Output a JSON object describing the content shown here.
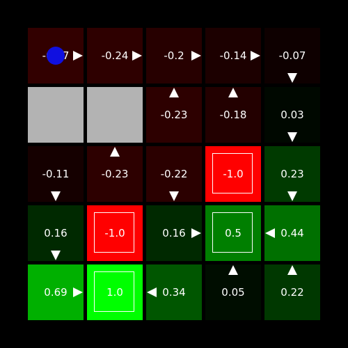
{
  "grid": {
    "rows": 5,
    "cols": 5,
    "cells": [
      [
        {
          "value": "-0.27",
          "type": "normal",
          "color": "#320000",
          "arrow": "right"
        },
        {
          "value": "-0.24",
          "type": "normal",
          "color": "#2e0000",
          "arrow": "right"
        },
        {
          "value": "-0.2",
          "type": "normal",
          "color": "#270000",
          "arrow": "right"
        },
        {
          "value": "-0.14",
          "type": "normal",
          "color": "#1c0000",
          "arrow": "right"
        },
        {
          "value": "-0.07",
          "type": "normal",
          "color": "#0e0000",
          "arrow": "down"
        }
      ],
      [
        {
          "value": "",
          "type": "wall",
          "color": "#b3b3b3",
          "arrow": ""
        },
        {
          "value": "",
          "type": "wall",
          "color": "#b3b3b3",
          "arrow": ""
        },
        {
          "value": "-0.23",
          "type": "normal",
          "color": "#2d0000",
          "arrow": "up"
        },
        {
          "value": "-0.18",
          "type": "normal",
          "color": "#230000",
          "arrow": "up"
        },
        {
          "value": "0.03",
          "type": "normal",
          "color": "#000800",
          "arrow": "down"
        }
      ],
      [
        {
          "value": "-0.11",
          "type": "normal",
          "color": "#150000",
          "arrow": "down"
        },
        {
          "value": "-0.23",
          "type": "normal",
          "color": "#2d0000",
          "arrow": "up"
        },
        {
          "value": "-0.22",
          "type": "normal",
          "color": "#2b0000",
          "arrow": "down"
        },
        {
          "value": "-1.0",
          "type": "terminal",
          "color": "#ff0000",
          "arrow": ""
        },
        {
          "value": "0.23",
          "type": "normal",
          "color": "#003a00",
          "arrow": "down"
        }
      ],
      [
        {
          "value": "0.16",
          "type": "normal",
          "color": "#002900",
          "arrow": "down"
        },
        {
          "value": "-1.0",
          "type": "terminal",
          "color": "#ff0000",
          "arrow": ""
        },
        {
          "value": "0.16",
          "type": "normal",
          "color": "#002900",
          "arrow": "right"
        },
        {
          "value": "0.5",
          "type": "terminal",
          "color": "#007f00",
          "arrow": ""
        },
        {
          "value": "0.44",
          "type": "normal",
          "color": "#007000",
          "arrow": "left"
        }
      ],
      [
        {
          "value": "0.69",
          "type": "normal",
          "color": "#00b000",
          "arrow": "right"
        },
        {
          "value": "1.0",
          "type": "terminal",
          "color": "#00ff00",
          "arrow": ""
        },
        {
          "value": "0.34",
          "type": "normal",
          "color": "#005600",
          "arrow": "left"
        },
        {
          "value": "0.05",
          "type": "normal",
          "color": "#000d00",
          "arrow": "up"
        },
        {
          "value": "0.22",
          "type": "normal",
          "color": "#003800",
          "arrow": "up"
        }
      ]
    ]
  },
  "agent": {
    "row": 0,
    "col": 0,
    "color": "#1010e0"
  }
}
